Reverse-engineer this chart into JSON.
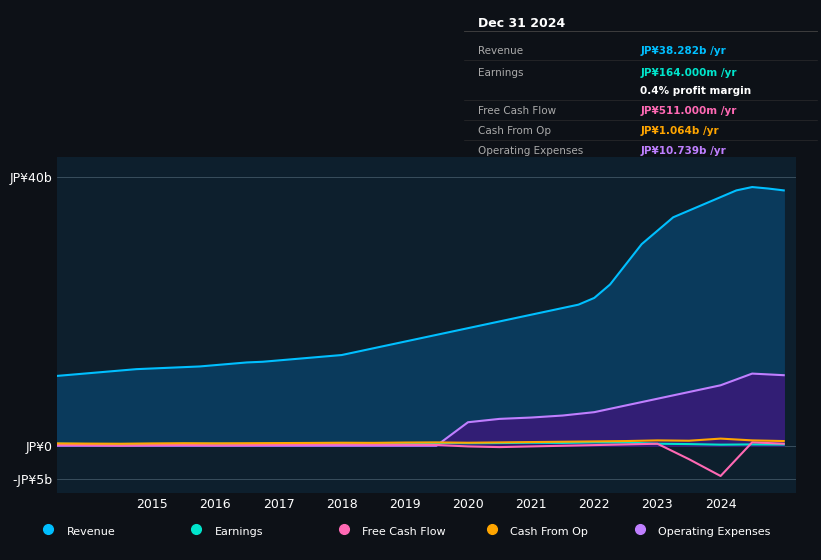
{
  "bg_color": "#0d1117",
  "plot_bg_color": "#0d1f2d",
  "title_box": {
    "date": "Dec 31 2024",
    "rows": [
      {
        "label": "Revenue",
        "value": "JP¥38.282b /yr",
        "value_color": "#00bfff"
      },
      {
        "label": "Earnings",
        "value": "JP¥164.000m /yr",
        "value_color": "#00e5cc"
      },
      {
        "label": "",
        "value": "0.4% profit margin",
        "value_color": "#ffffff"
      },
      {
        "label": "Free Cash Flow",
        "value": "JP¥511.000m /yr",
        "value_color": "#ff69b4"
      },
      {
        "label": "Cash From Op",
        "value": "JP¥1.064b /yr",
        "value_color": "#ffa500"
      },
      {
        "label": "Operating Expenses",
        "value": "JP¥10.739b /yr",
        "value_color": "#bf7fff"
      }
    ]
  },
  "yticks_labels": [
    "JP¥40b",
    "JP¥0",
    "-JP¥5b"
  ],
  "yticks_values": [
    40000000000,
    0,
    -5000000000
  ],
  "xticks": [
    2015,
    2016,
    2017,
    2018,
    2019,
    2020,
    2021,
    2022,
    2023,
    2024
  ],
  "series": {
    "Revenue": {
      "color": "#00bfff",
      "fill_color": "#0a3a5c",
      "data_x": [
        2013.0,
        2013.25,
        2013.5,
        2013.75,
        2014.0,
        2014.25,
        2014.5,
        2014.75,
        2015.0,
        2015.25,
        2015.5,
        2015.75,
        2016.0,
        2016.25,
        2016.5,
        2016.75,
        2017.0,
        2017.25,
        2017.5,
        2017.75,
        2018.0,
        2018.25,
        2018.5,
        2018.75,
        2019.0,
        2019.25,
        2019.5,
        2019.75,
        2020.0,
        2020.25,
        2020.5,
        2020.75,
        2021.0,
        2021.25,
        2021.5,
        2021.75,
        2022.0,
        2022.25,
        2022.5,
        2022.75,
        2023.0,
        2023.25,
        2023.5,
        2023.75,
        2024.0,
        2024.25,
        2024.5,
        2024.75,
        2025.0
      ],
      "data_y": [
        10000000000,
        10200000000,
        10400000000,
        10600000000,
        10800000000,
        11000000000,
        11200000000,
        11400000000,
        11500000000,
        11600000000,
        11700000000,
        11800000000,
        12000000000,
        12200000000,
        12400000000,
        12500000000,
        12700000000,
        12900000000,
        13100000000,
        13300000000,
        13500000000,
        14000000000,
        14500000000,
        15000000000,
        15500000000,
        16000000000,
        16500000000,
        17000000000,
        17500000000,
        18000000000,
        18500000000,
        19000000000,
        19500000000,
        20000000000,
        20500000000,
        21000000000,
        22000000000,
        24000000000,
        27000000000,
        30000000000,
        32000000000,
        34000000000,
        35000000000,
        36000000000,
        37000000000,
        38000000000,
        38500000000,
        38282000000,
        38000000000
      ]
    },
    "Earnings": {
      "color": "#00e5cc",
      "data_x": [
        2013.0,
        2013.5,
        2014.0,
        2014.5,
        2015.0,
        2015.5,
        2016.0,
        2016.5,
        2017.0,
        2017.5,
        2018.0,
        2018.5,
        2019.0,
        2019.5,
        2020.0,
        2020.5,
        2021.0,
        2021.5,
        2022.0,
        2022.5,
        2023.0,
        2023.5,
        2024.0,
        2024.5,
        2025.0
      ],
      "data_y": [
        200000000,
        300000000,
        250000000,
        200000000,
        220000000,
        280000000,
        300000000,
        250000000,
        300000000,
        350000000,
        400000000,
        380000000,
        400000000,
        420000000,
        380000000,
        400000000,
        450000000,
        420000000,
        500000000,
        480000000,
        300000000,
        250000000,
        164000000,
        200000000,
        180000000
      ]
    },
    "FreeCashFlow": {
      "color": "#ff69b4",
      "data_x": [
        2013.0,
        2013.5,
        2014.0,
        2014.5,
        2015.0,
        2015.5,
        2016.0,
        2016.5,
        2017.0,
        2017.5,
        2018.0,
        2018.5,
        2019.0,
        2019.5,
        2020.0,
        2020.5,
        2021.0,
        2021.5,
        2022.0,
        2022.5,
        2023.0,
        2023.5,
        2024.0,
        2024.5,
        2025.0
      ],
      "data_y": [
        100000000,
        150000000,
        100000000,
        50000000,
        100000000,
        120000000,
        80000000,
        100000000,
        150000000,
        180000000,
        200000000,
        180000000,
        150000000,
        120000000,
        -100000000,
        -200000000,
        -100000000,
        0,
        100000000,
        200000000,
        300000000,
        -2000000000,
        -4500000000,
        511000000,
        300000000
      ]
    },
    "CashFromOp": {
      "color": "#ffa500",
      "data_x": [
        2013.0,
        2013.5,
        2014.0,
        2014.5,
        2015.0,
        2015.5,
        2016.0,
        2016.5,
        2017.0,
        2017.5,
        2018.0,
        2018.5,
        2019.0,
        2019.5,
        2020.0,
        2020.5,
        2021.0,
        2021.5,
        2022.0,
        2022.5,
        2023.0,
        2023.5,
        2024.0,
        2024.5,
        2025.0
      ],
      "data_y": [
        300000000,
        350000000,
        320000000,
        300000000,
        350000000,
        380000000,
        360000000,
        380000000,
        400000000,
        420000000,
        450000000,
        430000000,
        480000000,
        500000000,
        450000000,
        500000000,
        550000000,
        600000000,
        650000000,
        700000000,
        800000000,
        750000000,
        1064000000,
        800000000,
        700000000
      ]
    },
    "OperatingExpenses": {
      "color": "#bf7fff",
      "fill_color": "#3a1a7a",
      "data_x": [
        2013.0,
        2013.5,
        2014.0,
        2014.5,
        2015.0,
        2015.5,
        2016.0,
        2016.5,
        2017.0,
        2017.5,
        2018.0,
        2018.5,
        2019.0,
        2019.5,
        2020.0,
        2020.5,
        2021.0,
        2021.5,
        2022.0,
        2022.5,
        2023.0,
        2023.5,
        2024.0,
        2024.5,
        2025.0
      ],
      "data_y": [
        0,
        0,
        0,
        0,
        0,
        0,
        0,
        0,
        0,
        0,
        0,
        0,
        0,
        0,
        3500000000,
        4000000000,
        4200000000,
        4500000000,
        5000000000,
        6000000000,
        7000000000,
        8000000000,
        9000000000,
        10739000000,
        10500000000
      ]
    }
  },
  "legend": [
    {
      "label": "Revenue",
      "color": "#00bfff"
    },
    {
      "label": "Earnings",
      "color": "#00e5cc"
    },
    {
      "label": "Free Cash Flow",
      "color": "#ff69b4"
    },
    {
      "label": "Cash From Op",
      "color": "#ffa500"
    },
    {
      "label": "Operating Expenses",
      "color": "#bf7fff"
    }
  ],
  "ylim": [
    -7000000000,
    43000000000
  ],
  "xlim": [
    2013.5,
    2025.2
  ]
}
